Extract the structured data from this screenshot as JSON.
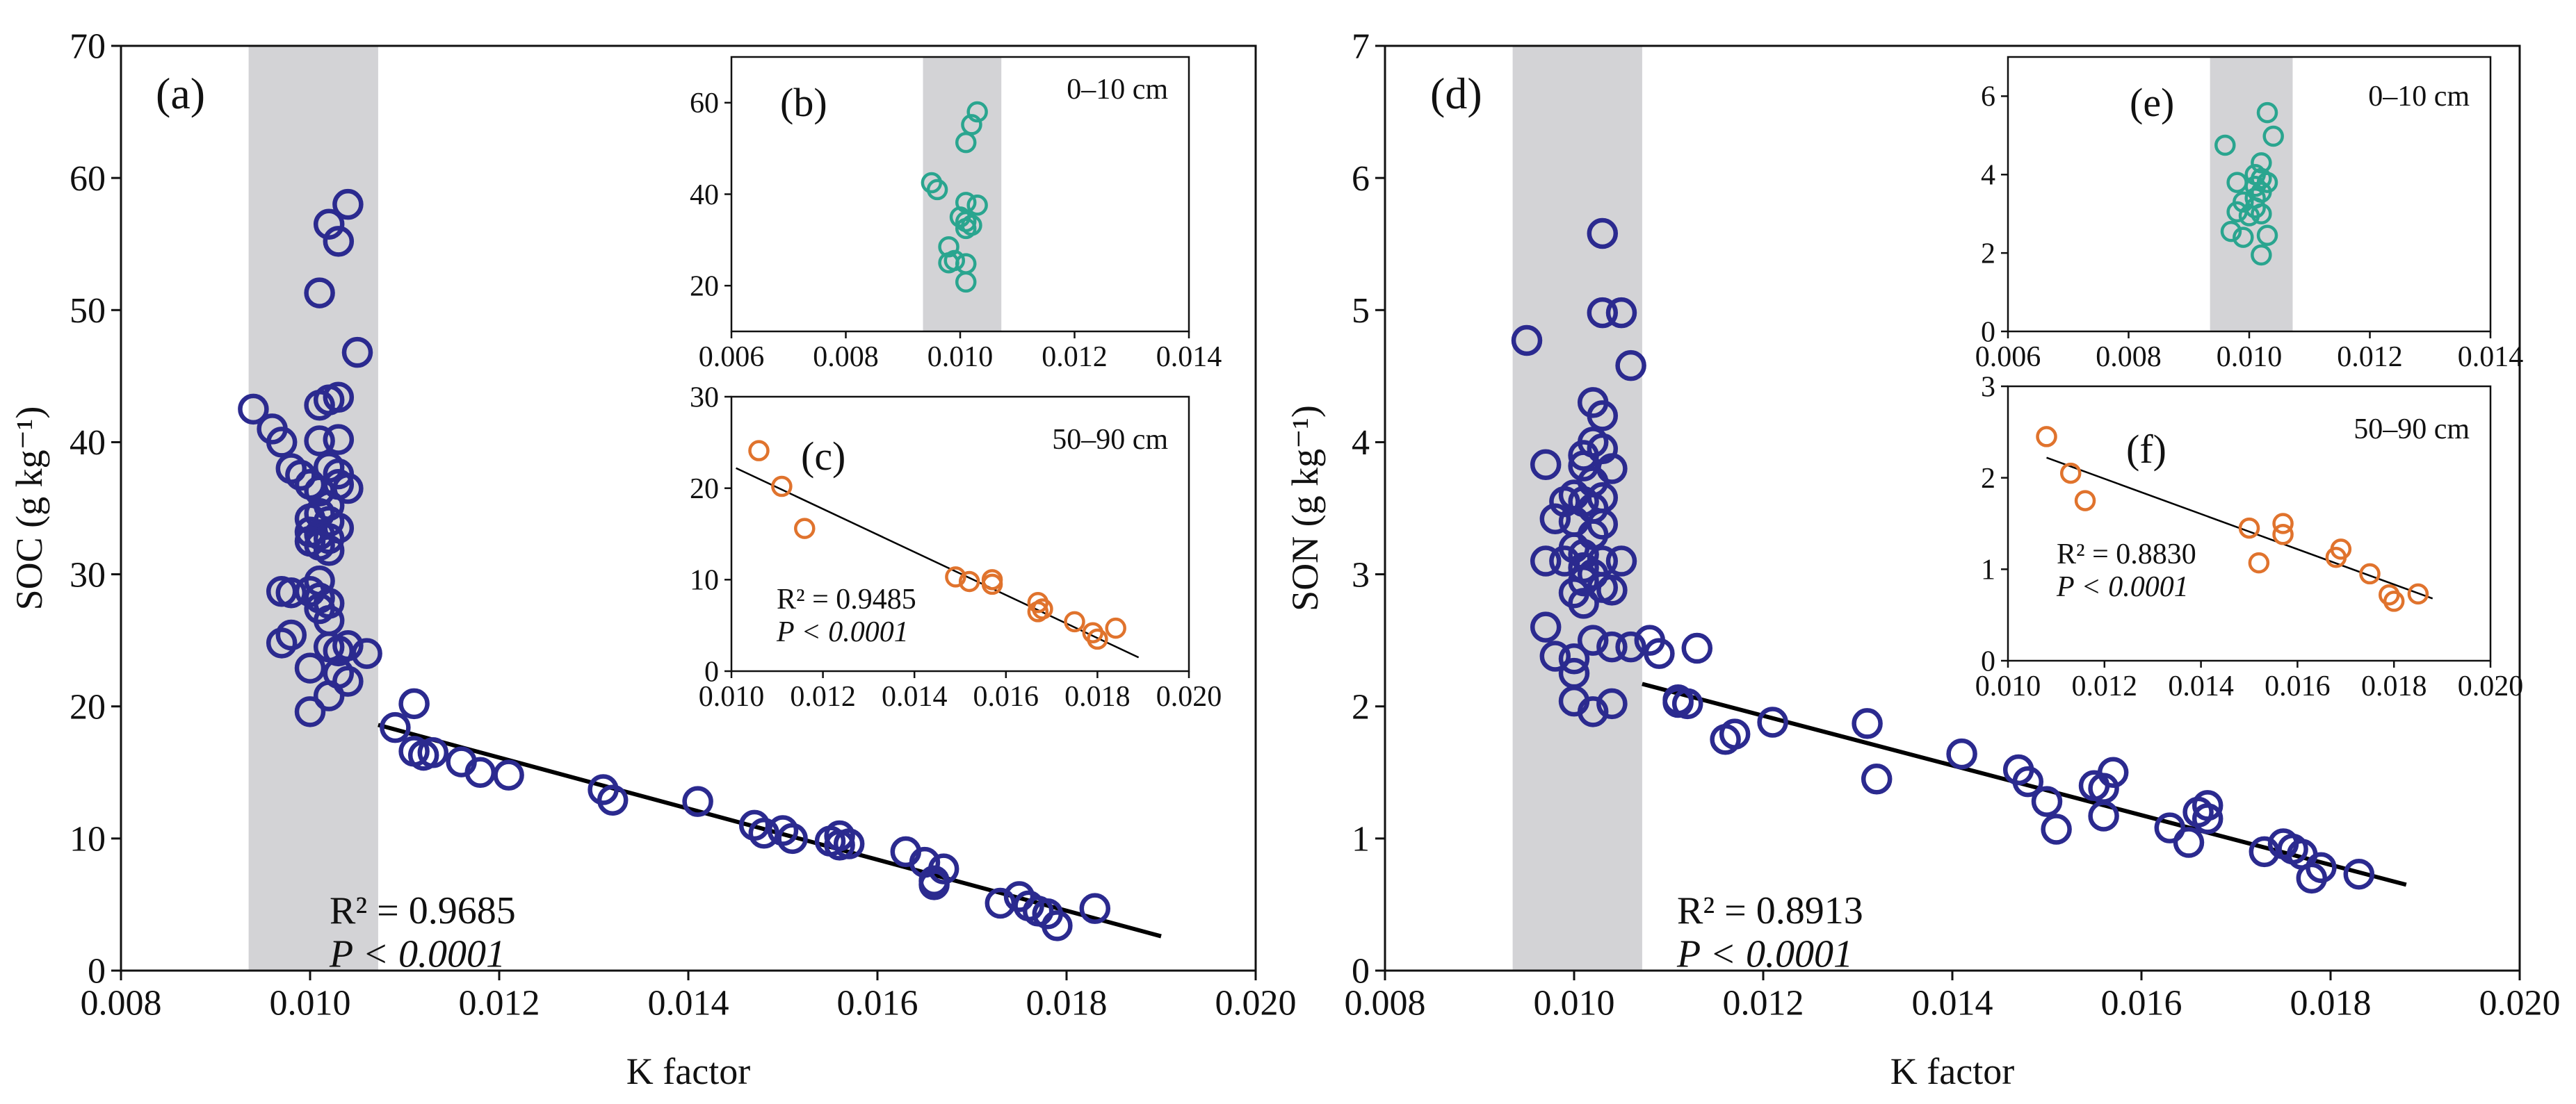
{
  "colors": {
    "main_marker": "#2b2a8f",
    "inset_top": "#2aa58f",
    "inset_bottom": "#e0732d",
    "band": "#d3d3d6",
    "axis": "#111111",
    "line": "#000000"
  },
  "chart_data": [
    {
      "id": "a",
      "type": "scatter",
      "label": "(a)",
      "xlabel": "K factor",
      "ylabel": "SOC (g kg⁻¹)",
      "xlim": [
        0.008,
        0.02
      ],
      "ylim": [
        0,
        70
      ],
      "xticks": [
        0.008,
        0.01,
        0.012,
        0.014,
        0.016,
        0.018,
        0.02
      ],
      "xtick_labels": [
        "0.008",
        "0.010",
        "0.012",
        "0.014",
        "0.016",
        "0.018",
        "0.020"
      ],
      "yticks": [
        0,
        10,
        20,
        30,
        40,
        50,
        60,
        70
      ],
      "ytick_labels": [
        "0",
        "10",
        "20",
        "30",
        "40",
        "50",
        "60",
        "70"
      ],
      "band": [
        0.00935,
        0.01072
      ],
      "fit_line": [
        [
          0.01072,
          18.6
        ],
        [
          0.019,
          2.6
        ]
      ],
      "annotation": {
        "r2": "R² = 0.9685",
        "p": "P < 0.0001"
      },
      "points": [
        [
          0.0094,
          42.5
        ],
        [
          0.0096,
          41
        ],
        [
          0.0097,
          40
        ],
        [
          0.0098,
          38
        ],
        [
          0.0099,
          37.5
        ],
        [
          0.01,
          36.8
        ],
        [
          0.0101,
          42.8
        ],
        [
          0.0102,
          43.2
        ],
        [
          0.0103,
          43.4
        ],
        [
          0.0102,
          56.5
        ],
        [
          0.0103,
          55.2
        ],
        [
          0.0104,
          58
        ],
        [
          0.0101,
          51.3
        ],
        [
          0.0105,
          46.8
        ],
        [
          0.0101,
          40.1
        ],
        [
          0.0103,
          40.2
        ],
        [
          0.0102,
          38.1
        ],
        [
          0.0103,
          37.6
        ],
        [
          0.0101,
          36.3
        ],
        [
          0.0102,
          35.2
        ],
        [
          0.0103,
          36.8
        ],
        [
          0.0104,
          36.5
        ],
        [
          0.01,
          34.2
        ],
        [
          0.0101,
          34.6
        ],
        [
          0.0102,
          34
        ],
        [
          0.0103,
          33.5
        ],
        [
          0.01,
          33.2
        ],
        [
          0.0101,
          33
        ],
        [
          0.0102,
          32.7
        ],
        [
          0.01,
          32.5
        ],
        [
          0.0101,
          32.2
        ],
        [
          0.0102,
          31.8
        ],
        [
          0.0101,
          29.5
        ],
        [
          0.01,
          28.7
        ],
        [
          0.0101,
          28.2
        ],
        [
          0.0102,
          27.8
        ],
        [
          0.0097,
          28.7
        ],
        [
          0.0098,
          28.6
        ],
        [
          0.0102,
          26.5
        ],
        [
          0.0101,
          27.4
        ],
        [
          0.0097,
          24.8
        ],
        [
          0.0098,
          25.4
        ],
        [
          0.0102,
          24.5
        ],
        [
          0.0103,
          24.2
        ],
        [
          0.0104,
          24.6
        ],
        [
          0.0106,
          24
        ],
        [
          0.01,
          22.9
        ],
        [
          0.0103,
          22.5
        ],
        [
          0.0104,
          21.9
        ],
        [
          0.0102,
          20.8
        ],
        [
          0.01,
          19.6
        ],
        [
          0.0109,
          18.4
        ],
        [
          0.0111,
          20.2
        ],
        [
          0.0111,
          16.6
        ],
        [
          0.0112,
          16.3
        ],
        [
          0.0113,
          16.5
        ],
        [
          0.0116,
          15.8
        ],
        [
          0.0118,
          15
        ],
        [
          0.0121,
          14.8
        ],
        [
          0.0131,
          13.7
        ],
        [
          0.0132,
          12.9
        ],
        [
          0.0141,
          12.8
        ],
        [
          0.0147,
          11
        ],
        [
          0.0148,
          10.4
        ],
        [
          0.015,
          10.6
        ],
        [
          0.0151,
          10
        ],
        [
          0.0155,
          9.8
        ],
        [
          0.0156,
          10.2
        ],
        [
          0.0157,
          9.6
        ],
        [
          0.0156,
          9.5
        ],
        [
          0.0163,
          9
        ],
        [
          0.0165,
          8.2
        ],
        [
          0.0166,
          6.8
        ],
        [
          0.0166,
          6.5
        ],
        [
          0.0167,
          7.7
        ],
        [
          0.0173,
          5.1
        ],
        [
          0.0175,
          5.6
        ],
        [
          0.0176,
          4.9
        ],
        [
          0.0177,
          4.5
        ],
        [
          0.0178,
          4.3
        ],
        [
          0.0179,
          3.4
        ],
        [
          0.0183,
          4.7
        ]
      ]
    },
    {
      "id": "b",
      "type": "scatter",
      "label": "(b)",
      "depth": "0–10 cm",
      "xlim": [
        0.006,
        0.014
      ],
      "ylim": [
        10,
        70
      ],
      "xticks": [
        0.006,
        0.008,
        0.01,
        0.012,
        0.014
      ],
      "xtick_labels": [
        "0.006",
        "0.008",
        "0.010",
        "0.012",
        "0.014"
      ],
      "yticks": [
        20,
        40,
        60
      ],
      "ytick_labels": [
        "20",
        "40",
        "60"
      ],
      "band": [
        0.00935,
        0.01072
      ],
      "points": [
        [
          0.0095,
          42.5
        ],
        [
          0.0096,
          41
        ],
        [
          0.0101,
          38.2
        ],
        [
          0.0103,
          37.6
        ],
        [
          0.01,
          35
        ],
        [
          0.0101,
          34
        ],
        [
          0.0102,
          33.2
        ],
        [
          0.0101,
          32.5
        ],
        [
          0.0102,
          55.2
        ],
        [
          0.0103,
          58
        ],
        [
          0.0101,
          51.3
        ],
        [
          0.0098,
          28.5
        ],
        [
          0.0098,
          25
        ],
        [
          0.0099,
          25.5
        ],
        [
          0.0101,
          24.8
        ],
        [
          0.0101,
          20.8
        ]
      ]
    },
    {
      "id": "c",
      "type": "scatter",
      "label": "(c)",
      "depth": "50–90 cm",
      "xlim": [
        0.01,
        0.02
      ],
      "ylim": [
        0,
        30
      ],
      "xticks": [
        0.01,
        0.012,
        0.014,
        0.016,
        0.018,
        0.02
      ],
      "xtick_labels": [
        "0.010",
        "0.012",
        "0.014",
        "0.016",
        "0.018",
        "0.020"
      ],
      "yticks": [
        0,
        10,
        20,
        30
      ],
      "ytick_labels": [
        "0",
        "10",
        "20",
        "30"
      ],
      "fit_line": [
        [
          0.0101,
          22.2
        ],
        [
          0.0189,
          1.5
        ]
      ],
      "annotation": {
        "r2": "R² = 0.9485",
        "p": "P < 0.0001"
      },
      "points": [
        [
          0.0106,
          24.1
        ],
        [
          0.0111,
          20.2
        ],
        [
          0.0116,
          15.6
        ],
        [
          0.0149,
          10.3
        ],
        [
          0.0152,
          9.8
        ],
        [
          0.0157,
          10
        ],
        [
          0.0157,
          9.5
        ],
        [
          0.0167,
          7.5
        ],
        [
          0.0168,
          6.8
        ],
        [
          0.0167,
          6.5
        ],
        [
          0.0175,
          5.4
        ],
        [
          0.0179,
          4.2
        ],
        [
          0.018,
          3.5
        ],
        [
          0.0184,
          4.7
        ]
      ]
    },
    {
      "id": "d",
      "type": "scatter",
      "label": "(d)",
      "xlabel": "K factor",
      "ylabel": "SON (g kg⁻¹)",
      "xlim": [
        0.008,
        0.02
      ],
      "ylim": [
        0,
        7
      ],
      "xticks": [
        0.008,
        0.01,
        0.012,
        0.014,
        0.016,
        0.018,
        0.02
      ],
      "xtick_labels": [
        "0.008",
        "0.010",
        "0.012",
        "0.014",
        "0.016",
        "0.018",
        "0.020"
      ],
      "yticks": [
        0,
        1,
        2,
        3,
        4,
        5,
        6,
        7
      ],
      "ytick_labels": [
        "0",
        "1",
        "2",
        "3",
        "4",
        "5",
        "6",
        "7"
      ],
      "band": [
        0.00935,
        0.01072
      ],
      "fit_line": [
        [
          0.01072,
          2.17
        ],
        [
          0.0188,
          0.65
        ]
      ],
      "annotation": {
        "r2": "R² = 0.8913",
        "p": "P < 0.0001"
      },
      "points": [
        [
          0.0095,
          4.77
        ],
        [
          0.0103,
          5.58
        ],
        [
          0.0103,
          4.98
        ],
        [
          0.0105,
          4.98
        ],
        [
          0.0106,
          4.58
        ],
        [
          0.0102,
          4.3
        ],
        [
          0.0103,
          4.2
        ],
        [
          0.0102,
          4
        ],
        [
          0.0103,
          3.95
        ],
        [
          0.0101,
          3.9
        ],
        [
          0.0097,
          3.83
        ],
        [
          0.0101,
          3.82
        ],
        [
          0.0104,
          3.8
        ],
        [
          0.0102,
          3.7
        ],
        [
          0.01,
          3.6
        ],
        [
          0.0101,
          3.55
        ],
        [
          0.0103,
          3.58
        ],
        [
          0.0102,
          3.5
        ],
        [
          0.0099,
          3.55
        ],
        [
          0.01,
          3.4
        ],
        [
          0.0103,
          3.38
        ],
        [
          0.0098,
          3.42
        ],
        [
          0.0102,
          3.3
        ],
        [
          0.01,
          3.2
        ],
        [
          0.0101,
          3.15
        ],
        [
          0.0103,
          3.1
        ],
        [
          0.0105,
          3.1
        ],
        [
          0.0097,
          3.1
        ],
        [
          0.0099,
          3.1
        ],
        [
          0.0101,
          3.05
        ],
        [
          0.0102,
          3
        ],
        [
          0.0101,
          2.95
        ],
        [
          0.0103,
          2.9
        ],
        [
          0.0104,
          2.88
        ],
        [
          0.01,
          2.86
        ],
        [
          0.0101,
          2.78
        ],
        [
          0.0097,
          2.6
        ],
        [
          0.0102,
          2.5
        ],
        [
          0.0104,
          2.45
        ],
        [
          0.0106,
          2.45
        ],
        [
          0.0108,
          2.5
        ],
        [
          0.0109,
          2.4
        ],
        [
          0.0098,
          2.38
        ],
        [
          0.01,
          2.36
        ],
        [
          0.01,
          2.25
        ],
        [
          0.01,
          2.04
        ],
        [
          0.0102,
          1.96
        ],
        [
          0.0104,
          2.02
        ],
        [
          0.0111,
          2.05
        ],
        [
          0.0111,
          2.03
        ],
        [
          0.0112,
          2.02
        ],
        [
          0.0113,
          2.44
        ],
        [
          0.0116,
          1.75
        ],
        [
          0.0117,
          1.79
        ],
        [
          0.0121,
          1.88
        ],
        [
          0.0131,
          1.87
        ],
        [
          0.0132,
          1.45
        ],
        [
          0.0141,
          1.64
        ],
        [
          0.0147,
          1.52
        ],
        [
          0.0148,
          1.43
        ],
        [
          0.015,
          1.28
        ],
        [
          0.0151,
          1.07
        ],
        [
          0.0155,
          1.4
        ],
        [
          0.0156,
          1.38
        ],
        [
          0.0157,
          1.5
        ],
        [
          0.0156,
          1.17
        ],
        [
          0.0163,
          1.08
        ],
        [
          0.0165,
          0.97
        ],
        [
          0.0166,
          1.2
        ],
        [
          0.0167,
          1.25
        ],
        [
          0.0167,
          1.15
        ],
        [
          0.0173,
          0.9
        ],
        [
          0.0175,
          0.96
        ],
        [
          0.0176,
          0.92
        ],
        [
          0.0177,
          0.88
        ],
        [
          0.0178,
          0.7
        ],
        [
          0.0179,
          0.78
        ],
        [
          0.0183,
          0.73
        ]
      ]
    },
    {
      "id": "e",
      "type": "scatter",
      "label": "(e)",
      "depth": "0–10 cm",
      "xlim": [
        0.006,
        0.014
      ],
      "ylim": [
        0,
        7
      ],
      "xticks": [
        0.006,
        0.008,
        0.01,
        0.012,
        0.014
      ],
      "xtick_labels": [
        "0.006",
        "0.008",
        "0.010",
        "0.012",
        "0.014"
      ],
      "yticks": [
        0,
        2,
        4,
        6
      ],
      "ytick_labels": [
        "0",
        "2",
        "4",
        "6"
      ],
      "band": [
        0.00935,
        0.01072
      ],
      "points": [
        [
          0.0096,
          4.75
        ],
        [
          0.0103,
          5.58
        ],
        [
          0.0104,
          4.98
        ],
        [
          0.0098,
          3.8
        ],
        [
          0.0102,
          4.3
        ],
        [
          0.0101,
          4
        ],
        [
          0.0102,
          3.9
        ],
        [
          0.0101,
          3.7
        ],
        [
          0.0103,
          3.8
        ],
        [
          0.0102,
          3.55
        ],
        [
          0.0101,
          3.4
        ],
        [
          0.0099,
          3.3
        ],
        [
          0.0101,
          3.15
        ],
        [
          0.0098,
          3.05
        ],
        [
          0.01,
          2.95
        ],
        [
          0.0102,
          3
        ],
        [
          0.0097,
          2.55
        ],
        [
          0.0099,
          2.4
        ],
        [
          0.0103,
          2.45
        ],
        [
          0.0102,
          1.95
        ]
      ]
    },
    {
      "id": "f",
      "type": "scatter",
      "label": "(f)",
      "depth": "50–90 cm",
      "xlim": [
        0.01,
        0.02
      ],
      "ylim": [
        0,
        3
      ],
      "xticks": [
        0.01,
        0.012,
        0.014,
        0.016,
        0.018,
        0.02
      ],
      "xtick_labels": [
        "0.010",
        "0.012",
        "0.014",
        "0.016",
        "0.018",
        "0.020"
      ],
      "yticks": [
        0,
        1,
        2,
        3
      ],
      "ytick_labels": [
        "0",
        "1",
        "2",
        "3"
      ],
      "fit_line": [
        [
          0.0108,
          2.22
        ],
        [
          0.0188,
          0.68
        ]
      ],
      "annotation": {
        "r2": "R² = 0.8830",
        "p": "P < 0.0001"
      },
      "points": [
        [
          0.0108,
          2.45
        ],
        [
          0.0113,
          2.05
        ],
        [
          0.0116,
          1.75
        ],
        [
          0.015,
          1.45
        ],
        [
          0.0152,
          1.07
        ],
        [
          0.0157,
          1.5
        ],
        [
          0.0157,
          1.38
        ],
        [
          0.0168,
          1.13
        ],
        [
          0.0169,
          1.22
        ],
        [
          0.0175,
          0.95
        ],
        [
          0.0179,
          0.72
        ],
        [
          0.018,
          0.65
        ],
        [
          0.0185,
          0.73
        ]
      ]
    }
  ]
}
